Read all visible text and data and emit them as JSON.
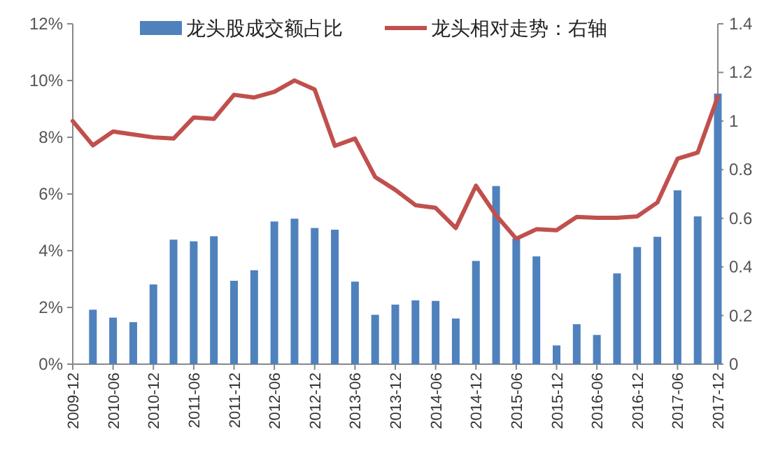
{
  "chart_data": {
    "type": "bar",
    "categories": [
      "2009-12",
      null,
      "2010-06",
      null,
      "2010-12",
      null,
      "2011-06",
      null,
      "2011-12",
      null,
      "2012-06",
      null,
      "2012-12",
      null,
      "2013-06",
      null,
      "2013-12",
      null,
      "2014-06",
      null,
      "2014-12",
      null,
      "2015-06",
      null,
      "2015-12",
      null,
      "2016-06",
      null,
      "2016-12",
      null,
      "2017-06",
      null,
      "2017-12"
    ],
    "series": [
      {
        "name": "龙头股成交额占比",
        "color": "#4f81bd",
        "values": [
          null,
          1.92,
          1.64,
          1.48,
          2.81,
          4.39,
          4.33,
          4.51,
          2.94,
          3.31,
          5.03,
          5.13,
          4.8,
          4.74,
          2.91,
          1.74,
          2.1,
          2.25,
          2.23,
          1.61,
          3.64,
          6.28,
          4.43,
          3.8,
          0.66,
          1.41,
          1.03,
          3.2,
          4.13,
          4.49,
          6.13,
          5.21,
          9.54
        ]
      },
      {
        "name": "龙头相对走势：右轴",
        "type": "line",
        "axis": "y2",
        "color": "#c0504d",
        "values": [
          1.0,
          0.9,
          0.957,
          0.945,
          0.933,
          0.928,
          1.015,
          1.009,
          1.108,
          1.097,
          1.12,
          1.167,
          1.13,
          0.898,
          0.928,
          0.77,
          0.717,
          0.654,
          0.643,
          0.56,
          0.734,
          0.612,
          0.516,
          0.555,
          0.551,
          0.606,
          0.602,
          0.602,
          0.608,
          0.665,
          0.845,
          0.87,
          1.1
        ]
      }
    ],
    "ylim": [
      0,
      12
    ],
    "yticks": [
      {
        "value": 0,
        "label": "0%"
      },
      {
        "value": 2,
        "label": "2%"
      },
      {
        "value": 4,
        "label": "4%"
      },
      {
        "value": 6,
        "label": "6%"
      },
      {
        "value": 8,
        "label": "8%"
      },
      {
        "value": 10,
        "label": "10%"
      },
      {
        "value": 12,
        "label": "12%"
      }
    ],
    "y2lim": [
      0,
      1.4
    ],
    "y2ticks": [
      0,
      0.2,
      0.4,
      0.6,
      0.8,
      1,
      1.2,
      1.4
    ],
    "legend": "top",
    "grid": false,
    "marker": "none",
    "line_style": "solid"
  }
}
